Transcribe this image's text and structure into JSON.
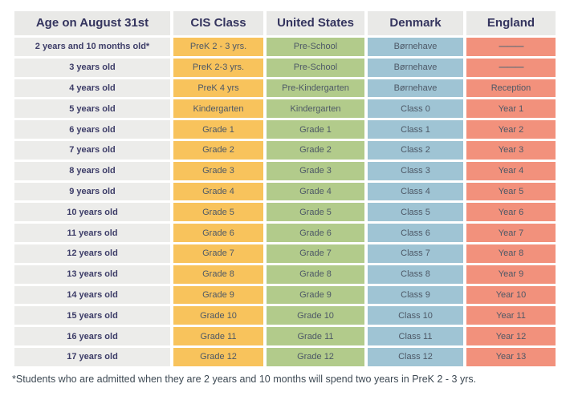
{
  "colors": {
    "header_bg": "#e9e9e7",
    "age_column_bg": "#ececea",
    "cis_column_bg": "#f8c35c",
    "us_column_bg": "#b2cb8b",
    "denmark_column_bg": "#9fc4d4",
    "england_column_bg": "#f2917c",
    "header_text": "#34345e",
    "age_text": "#3d3d68",
    "cell_text": "#4d5866"
  },
  "table": {
    "headers": {
      "age": "Age on August 31st",
      "cis": "CIS Class",
      "us": "United States",
      "denmark": "Denmark",
      "england": "England"
    },
    "rows": [
      {
        "age": "2 years and 10 months old*",
        "cis": "PreK 2 - 3 yrs.",
        "us": "Pre-School",
        "denmark": "Børnehave",
        "england": "———"
      },
      {
        "age": "3 years old",
        "cis": "PreK 2-3 yrs.",
        "us": "Pre-School",
        "denmark": "Børnehave",
        "england": "———"
      },
      {
        "age": "4 years old",
        "cis": "PreK 4 yrs",
        "us": "Pre-Kindergarten",
        "denmark": "Børnehave",
        "england": "Reception"
      },
      {
        "age": "5 years old",
        "cis": "Kindergarten",
        "us": "Kindergarten",
        "denmark": "Class 0",
        "england": "Year 1"
      },
      {
        "age": "6 years old",
        "cis": "Grade 1",
        "us": "Grade 1",
        "denmark": "Class 1",
        "england": "Year 2"
      },
      {
        "age": "7 years old",
        "cis": "Grade 2",
        "us": "Grade 2",
        "denmark": "Class 2",
        "england": "Year 3"
      },
      {
        "age": "8 years old",
        "cis": "Grade 3",
        "us": "Grade 3",
        "denmark": "Class 3",
        "england": "Year 4"
      },
      {
        "age": "9 years old",
        "cis": "Grade 4",
        "us": "Grade 4",
        "denmark": "Class 4",
        "england": "Year 5"
      },
      {
        "age": "10 years old",
        "cis": "Grade 5",
        "us": "Grade 5",
        "denmark": "Class 5",
        "england": "Year 6"
      },
      {
        "age": "11 years old",
        "cis": "Grade 6",
        "us": "Grade 6",
        "denmark": "Class 6",
        "england": "Year 7"
      },
      {
        "age": "12 years old",
        "cis": "Grade 7",
        "us": "Grade 7",
        "denmark": "Class 7",
        "england": "Year 8"
      },
      {
        "age": "13 years old",
        "cis": "Grade 8",
        "us": "Grade 8",
        "denmark": "Class 8",
        "england": "Year 9"
      },
      {
        "age": "14 years old",
        "cis": "Grade 9",
        "us": "Grade 9",
        "denmark": "Class 9",
        "england": "Year 10"
      },
      {
        "age": "15 years old",
        "cis": "Grade 10",
        "us": "Grade 10",
        "denmark": "Class 10",
        "england": "Year 11"
      },
      {
        "age": "16 years old",
        "cis": "Grade 11",
        "us": "Grade 11",
        "denmark": "Class 11",
        "england": "Year 12"
      },
      {
        "age": "17 years old",
        "cis": "Grade 12",
        "us": "Grade 12",
        "denmark": "Class 12",
        "england": "Year 13"
      }
    ]
  },
  "footnote": "*Students who are admitted when they are 2 years and 10 months will spend two years in PreK 2 - 3 yrs."
}
